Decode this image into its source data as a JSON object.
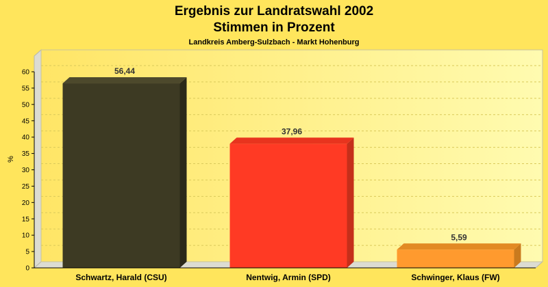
{
  "chart_data": {
    "type": "bar",
    "title": "Ergebnis zur Landratswahl 2002",
    "title2": "Stimmen in Prozent",
    "subtitle": "Landkreis Amberg-Sulzbach - Markt Hohenburg",
    "ylabel": "%",
    "ylim": [
      0,
      60
    ],
    "yticks": [
      "0",
      "5",
      "10",
      "15",
      "20",
      "25",
      "30",
      "35",
      "40",
      "45",
      "50",
      "55",
      "60"
    ],
    "grid": true,
    "categories": [
      "Schwartz, Harald (CSU)",
      "Nentwig, Armin (SPD)",
      "Schwinger, Klaus (FW)"
    ],
    "values": [
      56.44,
      37.96,
      5.59
    ],
    "value_labels": [
      "56,44",
      "37,96",
      "5,59"
    ],
    "colors": [
      "#3d3a23",
      "#ff3a24",
      "#ff9a2e"
    ],
    "side_colors": [
      "#2b291a",
      "#c52f1a",
      "#c97a1e"
    ],
    "top_colors": [
      "#4d492c",
      "#e8341e",
      "#e28a24"
    ]
  }
}
